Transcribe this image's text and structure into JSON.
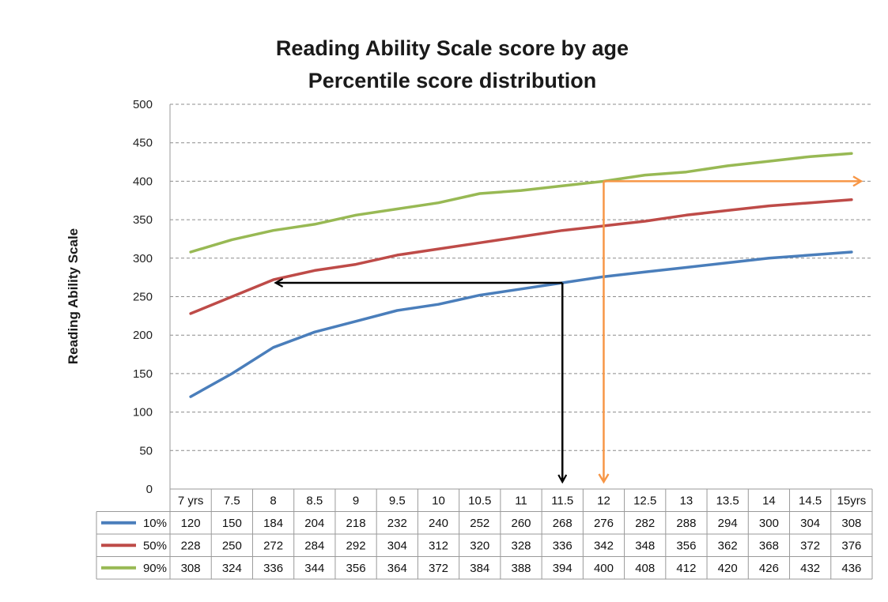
{
  "chart_data": {
    "type": "line",
    "title": "Reading Ability Scale score by age",
    "subtitle": "Percentile score distribution",
    "ylabel": "Reading Ability Scale",
    "xlabel": "",
    "ylim": [
      0,
      500
    ],
    "yticks": [
      0,
      50,
      100,
      150,
      200,
      250,
      300,
      350,
      400,
      450,
      500
    ],
    "grid": true,
    "legend": "data-table",
    "categories": [
      "7 yrs",
      "7.5",
      "8",
      "8.5",
      "9",
      "9.5",
      "10",
      "10.5",
      "11",
      "11.5",
      "12",
      "12.5",
      "13",
      "13.5",
      "14",
      "14.5",
      "15yrs"
    ],
    "series": [
      {
        "name": "10%",
        "color": "#4a7ebb",
        "values": [
          120,
          150,
          184,
          204,
          218,
          232,
          240,
          252,
          260,
          268,
          276,
          282,
          288,
          294,
          300,
          304,
          308
        ]
      },
      {
        "name": "50%",
        "color": "#be4b48",
        "values": [
          228,
          250,
          272,
          284,
          292,
          304,
          312,
          320,
          328,
          336,
          342,
          348,
          356,
          362,
          368,
          372,
          376
        ]
      },
      {
        "name": "90%",
        "color": "#98b954",
        "values": [
          308,
          324,
          336,
          344,
          356,
          364,
          372,
          384,
          388,
          394,
          400,
          408,
          412,
          420,
          426,
          432,
          436
        ]
      }
    ],
    "annotations": [
      {
        "color": "#000000",
        "path": [
          {
            "x": 11.5,
            "y": 0
          },
          {
            "x": 11.5,
            "y": 268
          },
          {
            "x": 8,
            "y": 268
          }
        ]
      },
      {
        "color": "#f79646",
        "path": [
          {
            "x": 12,
            "y": 0
          },
          {
            "x": 12,
            "y": 400
          },
          {
            "x": 15,
            "y": 400
          }
        ]
      }
    ]
  }
}
